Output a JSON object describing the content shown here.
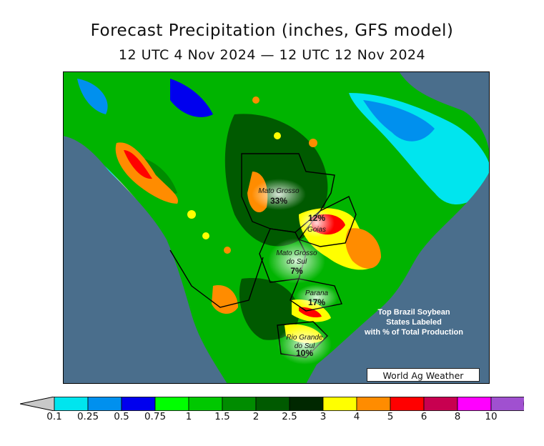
{
  "title": "Forecast Precipitation (inches, GFS model)",
  "subtitle": "12 UTC 4 Nov 2024 — 12 UTC 12 Nov 2024",
  "credit": "World Ag Weather",
  "note": [
    "Top Brazil Soybean",
    "States Labeled",
    "with % of Total Production"
  ],
  "states": [
    {
      "name": "Mato Grosso",
      "pct": "33%"
    },
    {
      "name": "Goias",
      "pct": "12%"
    },
    {
      "name": "Mato Grosso do Sul",
      "pct": "7%"
    },
    {
      "name": "Parana",
      "pct": "17%"
    },
    {
      "name": "Rio Grande do Sul",
      "pct": "10%"
    }
  ],
  "legend": {
    "ticks": [
      "0.1",
      "0.25",
      "0.5",
      "0.75",
      "1",
      "1.5",
      "2",
      "2.5",
      "3",
      "4",
      "5",
      "6",
      "8",
      "10"
    ],
    "colors": [
      "#00e5ee",
      "#0090ee",
      "#0000ee",
      "#00ff00",
      "#00c800",
      "#008c00",
      "#005a00",
      "#002800",
      "#ffff00",
      "#ff8c00",
      "#ff0000",
      "#c80050",
      "#ff00ff",
      "#a050d0"
    ]
  },
  "colors": {
    "ocean": "#4a6e8c",
    "land_dry": "#c8c8c8",
    "border": "#000000"
  }
}
